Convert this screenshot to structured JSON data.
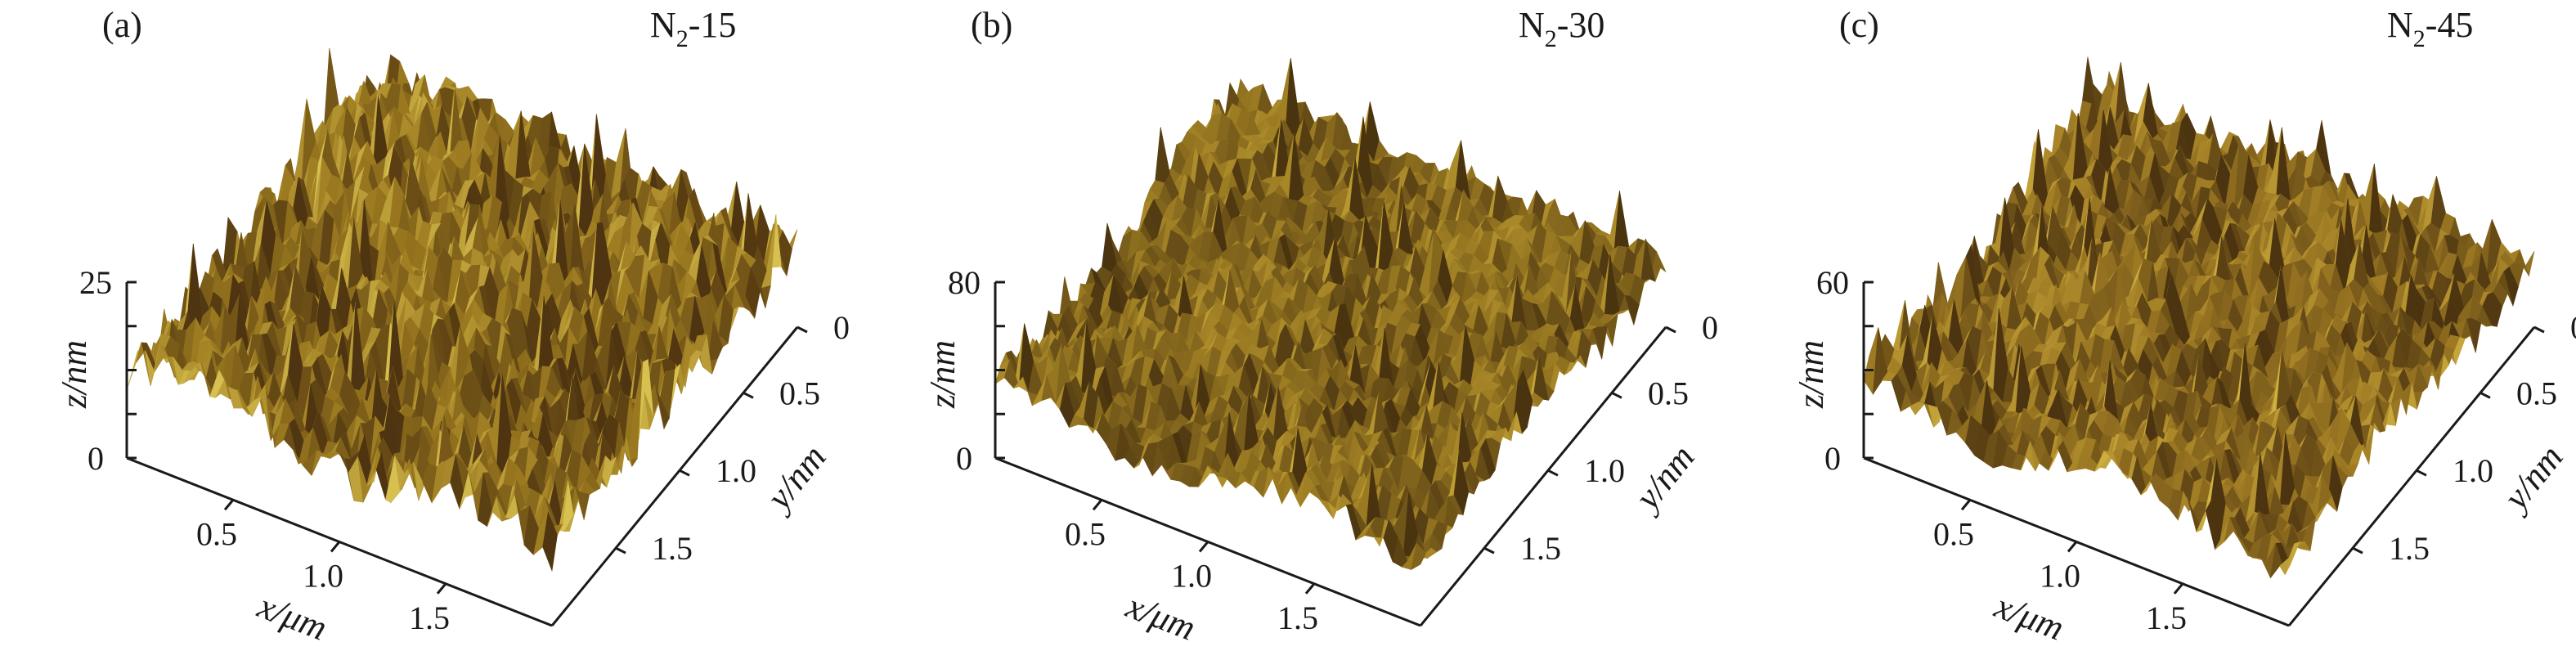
{
  "panels": [
    {
      "label": "(a)",
      "title_main": "N",
      "title_sub": "2",
      "title_rest": "-15",
      "z_max": 25,
      "z_max_label": "25",
      "z_min_label": "0",
      "x_ticks": [
        "0.5",
        "1.0",
        "1.5"
      ],
      "y_ticks": [
        "0",
        "0.5",
        "1.0",
        "1.5"
      ],
      "xlabel": "x/μm",
      "ylabel": "y/nm",
      "zlabel": "z/nm",
      "surface_colors": {
        "dark": "#4e3410",
        "mid": "#9c7a20",
        "light": "#d8c050"
      }
    },
    {
      "label": "(b)",
      "title_main": "N",
      "title_sub": "2",
      "title_rest": "-30",
      "z_max": 80,
      "z_max_label": "80",
      "z_min_label": "0",
      "x_ticks": [
        "0.5",
        "1.0",
        "1.5"
      ],
      "y_ticks": [
        "0",
        "0.5",
        "1.0",
        "1.5"
      ],
      "xlabel": "x/μm",
      "ylabel": "y/nm",
      "zlabel": "z/nm",
      "surface_colors": {
        "dark": "#4a3410",
        "mid": "#9a7a22",
        "light": "#c8a838"
      }
    },
    {
      "label": "(c)",
      "title_main": "N",
      "title_sub": "2",
      "title_rest": "-45",
      "z_max": 60,
      "z_max_label": "60",
      "z_min_label": "0",
      "x_ticks": [
        "0.5",
        "1.0",
        "1.5"
      ],
      "y_ticks": [
        "0",
        "0.5",
        "1.0",
        "1.5"
      ],
      "xlabel": "x/μm",
      "ylabel": "y/nm",
      "zlabel": "z/nm",
      "surface_colors": {
        "dark": "#4c3410",
        "mid": "#a07c24",
        "light": "#cfb040"
      }
    }
  ]
}
